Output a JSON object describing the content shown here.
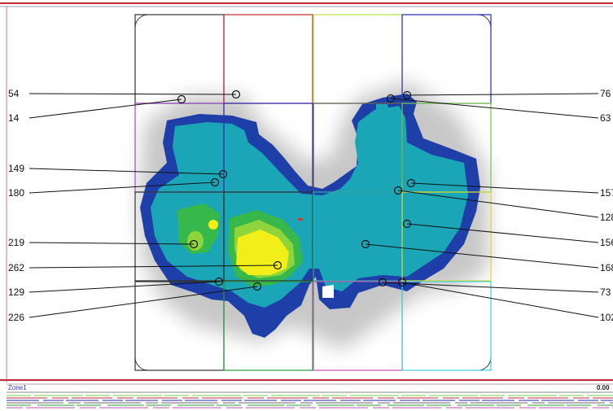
{
  "callouts_left": [
    {
      "label": "54",
      "value": 54
    },
    {
      "label": "14",
      "value": 14
    },
    {
      "label": "149",
      "value": 149
    },
    {
      "label": "180",
      "value": 180
    },
    {
      "label": "219",
      "value": 219
    },
    {
      "label": "262",
      "value": 262
    },
    {
      "label": "129",
      "value": 129
    },
    {
      "label": "226",
      "value": 226
    }
  ],
  "callouts_right": [
    {
      "label": "76",
      "value": 76
    },
    {
      "label": "63",
      "value": 63
    },
    {
      "label": "157",
      "value": 157
    },
    {
      "label": "128",
      "value": 128
    },
    {
      "label": "156",
      "value": 156
    },
    {
      "label": "168",
      "value": 168
    },
    {
      "label": "73",
      "value": 73
    },
    {
      "label": "102",
      "value": 102
    }
  ],
  "zone_strip": {
    "zone_label": "Zone1",
    "value_readout": "0.00"
  },
  "colors": {
    "top_border": "#c0283a",
    "heat_low": "#1f3fa8",
    "heat_mid": "#1aa6b7",
    "heat_high": "#37b84a",
    "heat_peak": "#f2ee1a"
  }
}
